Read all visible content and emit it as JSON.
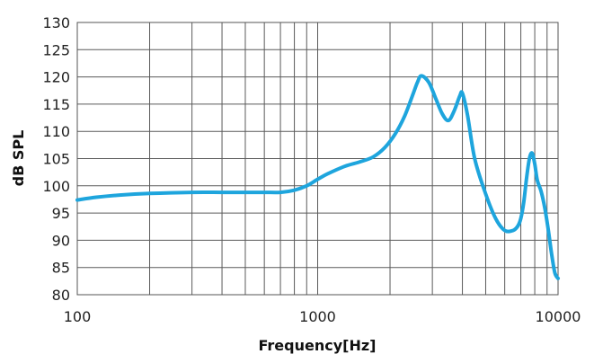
{
  "chart_data": {
    "type": "line",
    "xlabel": "Frequency[Hz]",
    "ylabel": "dB SPL",
    "x_scale": "log",
    "xlim": [
      100,
      10000
    ],
    "ylim": [
      80,
      130
    ],
    "x_ticks": [
      100,
      1000,
      10000
    ],
    "x_tick_labels": [
      "100",
      "1000",
      "10000"
    ],
    "y_ticks": [
      80,
      85,
      90,
      95,
      100,
      105,
      110,
      115,
      120,
      125,
      130
    ],
    "y_tick_labels": [
      "80",
      "85",
      "90",
      "95",
      "100",
      "105",
      "110",
      "115",
      "120",
      "125",
      "130"
    ],
    "grid": true,
    "legend": "none",
    "series_color": "#1ea5dd",
    "series": [
      {
        "x": [
          100,
          120,
          150,
          200,
          300,
          400,
          500,
          600,
          700,
          800,
          900,
          1000,
          1100,
          1300,
          1500,
          1700,
          1900,
          2100,
          2300,
          2500,
          2600,
          2700,
          2900,
          3100,
          3300,
          3500,
          3700,
          3900,
          4000,
          4200,
          4500,
          5000,
          5500,
          6000,
          6500,
          6800,
          7000,
          7200,
          7400,
          7600,
          7800,
          8000,
          8200,
          8500,
          8800,
          9100,
          9400,
          9700,
          10000
        ],
        "y": [
          97.4,
          97.9,
          98.3,
          98.6,
          98.8,
          98.8,
          98.8,
          98.8,
          98.8,
          99.2,
          100.0,
          101.2,
          102.2,
          103.6,
          104.4,
          105.3,
          107.0,
          109.5,
          112.8,
          117.0,
          119.0,
          120.2,
          119.0,
          116.0,
          113.2,
          112.0,
          113.8,
          116.5,
          117.0,
          113.0,
          105.0,
          98.5,
          94.0,
          91.8,
          91.8,
          92.6,
          94.0,
          97.0,
          101.5,
          105.0,
          106.0,
          104.0,
          101.0,
          99.0,
          96.0,
          92.0,
          87.5,
          84.0,
          83.0
        ]
      }
    ]
  }
}
